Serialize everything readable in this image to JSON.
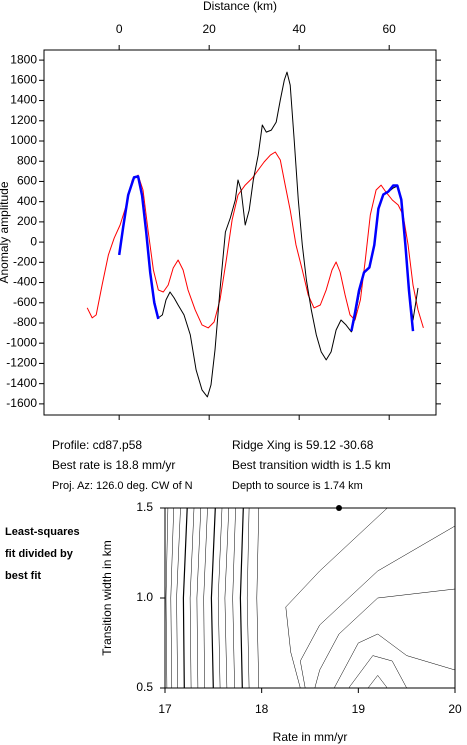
{
  "chart_data": [
    {
      "type": "line",
      "title": "Distance (km)",
      "y_label": "Anomaly amplitude",
      "xlim": [
        -16.7,
        70.4
      ],
      "ylim": [
        -1710,
        1900
      ],
      "xticks": [
        0,
        20,
        40,
        60
      ],
      "yticks": [
        -1600,
        -1400,
        -1200,
        -1000,
        -800,
        -600,
        -400,
        -200,
        0,
        200,
        400,
        600,
        800,
        1000,
        1200,
        1400,
        1600,
        1800
      ],
      "series": [
        {
          "color": "#ff0000",
          "width": 1,
          "x": [
            -7.1,
            -6.0,
            -5.1,
            -3.8,
            -2.4,
            -1.1,
            0.2,
            1.6,
            2.9,
            4.2,
            5.3,
            6.4,
            7.6,
            8.7,
            9.8,
            10.9,
            12.0,
            13.1,
            14.2,
            15.3,
            16.9,
            18.4,
            19.8,
            21.1,
            22.4,
            23.8,
            25.1,
            26.4,
            28.0,
            29.6,
            30.9,
            32.2,
            33.6,
            34.7,
            35.8,
            36.9,
            38.0,
            39.3,
            40.7,
            42.0,
            43.3,
            44.7,
            46.0,
            47.3,
            48.2,
            49.1,
            50.2,
            51.3,
            52.4,
            53.6,
            54.7,
            55.8,
            57.1,
            58.2,
            59.3,
            60.7,
            62.0,
            63.1,
            64.2,
            65.3,
            66.4,
            67.6
          ],
          "values": [
            -650,
            -750,
            -720,
            -424,
            -127,
            40,
            169,
            367,
            614,
            663,
            515,
            120,
            -276,
            -473,
            -493,
            -424,
            -256,
            -177,
            -276,
            -473,
            -671,
            -819,
            -849,
            -790,
            -572,
            -177,
            219,
            466,
            564,
            634,
            713,
            792,
            861,
            891,
            812,
            564,
            317,
            -29,
            -276,
            -523,
            -651,
            -622,
            -473,
            -276,
            -197,
            -296,
            -523,
            -720,
            -770,
            -572,
            -177,
            268,
            515,
            564,
            495,
            416,
            367,
            268,
            -29,
            -424,
            -671,
            -849
          ]
        },
        {
          "color": "#000000",
          "width": 1,
          "x": [
            0,
            0.9,
            2.0,
            3.3,
            4.2,
            5.1,
            6.0,
            6.9,
            7.8,
            8.7,
            9.6,
            10.4,
            11.3,
            12.2,
            13.1,
            14.4,
            15.8,
            17.1,
            18.4,
            19.6,
            20.4,
            21.3,
            22.4,
            23.6,
            24.7,
            25.8,
            26.4,
            27.1,
            28.0,
            28.9,
            29.8,
            30.9,
            31.8,
            32.7,
            33.8,
            34.9,
            35.8,
            36.7,
            37.3,
            38.0,
            38.9,
            39.8,
            40.7,
            41.6,
            42.7,
            43.8,
            44.9,
            46.0,
            47.1,
            48.2,
            49.3,
            50.4,
            51.6,
            52.4,
            53.3,
            54.4,
            55.6,
            56.7,
            57.6,
            58.7,
            59.8,
            60.9,
            61.8,
            62.7,
            63.6,
            64.4,
            65.3,
            66.0,
            66.4
          ],
          "values": [
            -127,
            169,
            466,
            634,
            653,
            466,
            120,
            -276,
            -572,
            -750,
            -720,
            -572,
            -493,
            -552,
            -622,
            -720,
            -918,
            -1264,
            -1462,
            -1531,
            -1412,
            -1066,
            -473,
            100,
            238,
            416,
            614,
            515,
            169,
            317,
            614,
            861,
            1158,
            1088,
            1108,
            1187,
            1405,
            1602,
            1681,
            1553,
            1009,
            416,
            -29,
            -375,
            -671,
            -918,
            -1086,
            -1165,
            -1086,
            -869,
            -770,
            -819,
            -888,
            -750,
            -523,
            -296,
            -256,
            -29,
            317,
            466,
            495,
            535,
            555,
            416,
            -29,
            -473,
            -770,
            -572,
            -453
          ]
        },
        {
          "color": "#0000ff",
          "width": 2.5,
          "x": [
            0,
            0.9,
            2.0,
            3.3,
            4.2,
            5.1,
            6.0,
            6.9,
            7.8,
            8.7,
            30,
            51.6,
            52.4,
            53.3,
            54.4,
            55.6,
            56.7,
            57.6,
            58.7,
            59.8,
            60.9,
            61.8,
            62.7,
            63.6,
            64.4,
            65.3
          ],
          "values": [
            -127,
            150,
            466,
            640,
            650,
            460,
            100,
            -300,
            -600,
            -760,
            null,
            -880,
            -700,
            -480,
            -300,
            -250,
            -29,
            330,
            470,
            500,
            560,
            560,
            420,
            -29,
            -480,
            -880
          ]
        }
      ],
      "annotations": [
        "Profile: cd87.p58",
        "Ridge Xing is 59.12 -30.68",
        "Best rate is 18.8 mm/yr",
        "Best transition width is 1.5 km",
        "Proj. Az: 126.0 deg. CW of N",
        "Depth to source is   1.74 km"
      ]
    },
    {
      "type": "contour",
      "x_label": "Rate in mm/yr",
      "y_label": "Transition width in km",
      "note": [
        "Least-squares",
        "fit divided by",
        "best fit"
      ],
      "xlim": [
        17,
        20
      ],
      "ylim": [
        0.5,
        1.5
      ],
      "xticks": [
        17,
        18,
        19,
        20
      ],
      "yticks": [
        0.5,
        {
          "value": 1,
          "label": "1.0"
        },
        1.5
      ],
      "best_fit": {
        "x": 18.8,
        "y": 1.5
      },
      "contours": [
        {
          "x": [
            17.03,
            17.01,
            17.02
          ],
          "y": [
            1.5,
            1.0,
            0.5
          ]
        },
        {
          "x": [
            17.09,
            17.06,
            17.07
          ],
          "y": [
            1.5,
            1.0,
            0.5
          ]
        },
        {
          "x": [
            17.16,
            17.12,
            17.13
          ],
          "y": [
            1.5,
            1.0,
            0.5
          ]
        },
        {
          "x": [
            17.23,
            17.19,
            17.2
          ],
          "y": [
            1.5,
            1.0,
            0.5
          ]
        },
        {
          "x": [
            17.3,
            17.26,
            17.27
          ],
          "y": [
            1.5,
            1.0,
            0.5
          ]
        },
        {
          "x": [
            17.37,
            17.33,
            17.34
          ],
          "y": [
            1.5,
            1.0,
            0.5
          ]
        },
        {
          "x": [
            17.44,
            17.4,
            17.41
          ],
          "y": [
            1.5,
            1.0,
            0.5
          ]
        },
        {
          "x": [
            17.52,
            17.48,
            17.5
          ],
          "y": [
            1.5,
            1.0,
            0.5
          ]
        },
        {
          "x": [
            17.59,
            17.55,
            17.57
          ],
          "y": [
            1.5,
            1.0,
            0.5
          ]
        },
        {
          "x": [
            17.66,
            17.62,
            17.64
          ],
          "y": [
            1.5,
            1.0,
            0.5
          ]
        },
        {
          "x": [
            17.73,
            17.7,
            17.72
          ],
          "y": [
            1.5,
            1.0,
            0.5
          ]
        },
        {
          "x": [
            17.81,
            17.78,
            17.8
          ],
          "y": [
            1.5,
            1.0,
            0.5
          ]
        },
        {
          "x": [
            17.87,
            17.85,
            17.87
          ],
          "y": [
            1.5,
            1.0,
            0.5
          ]
        },
        {
          "x": [
            17.97,
            17.95,
            17.97
          ],
          "y": [
            1.5,
            1.0,
            0.5
          ]
        },
        {
          "x": [
            19.3,
            18.6,
            18.25,
            18.3,
            18.4
          ],
          "y": [
            1.5,
            1.15,
            0.95,
            0.7,
            0.5
          ]
        },
        {
          "x": [
            20.0,
            19.2,
            18.6,
            18.4,
            18.45
          ],
          "y": [
            1.4,
            1.15,
            0.85,
            0.65,
            0.5
          ]
        },
        {
          "x": [
            20.0,
            19.2,
            18.8,
            18.6,
            18.55
          ],
          "y": [
            1.05,
            1.0,
            0.8,
            0.6,
            0.5
          ]
        },
        {
          "x": [
            18.75,
            19.0,
            19.2,
            19.5,
            20.0
          ],
          "y": [
            0.5,
            0.75,
            0.8,
            0.68,
            0.6
          ]
        },
        {
          "x": [
            18.9,
            19.15,
            19.35,
            19.5
          ],
          "y": [
            0.5,
            0.68,
            0.65,
            0.5
          ]
        },
        {
          "x": [
            19.1,
            19.2,
            19.3
          ],
          "y": [
            0.5,
            0.57,
            0.5
          ]
        }
      ]
    }
  ]
}
